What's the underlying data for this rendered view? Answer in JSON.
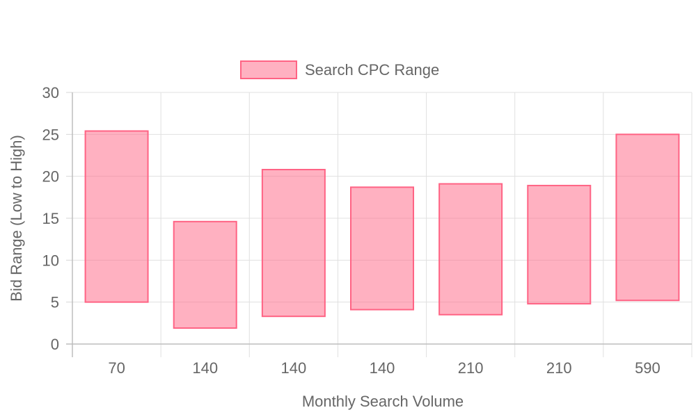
{
  "chart_data": {
    "type": "bar",
    "subtype": "floating-range",
    "title": "",
    "xlabel": "Monthly Search Volume",
    "ylabel": "Bid Range (Low to High)",
    "categories": [
      "70",
      "140",
      "140",
      "140",
      "210",
      "210",
      "590"
    ],
    "series": [
      {
        "name": "Search CPC Range",
        "color": "#ff6384",
        "fill": "rgba(255, 99, 132, 0.5)",
        "ranges": [
          [
            5.0,
            25.4
          ],
          [
            1.9,
            14.6
          ],
          [
            3.3,
            20.8
          ],
          [
            4.1,
            18.7
          ],
          [
            3.5,
            19.1
          ],
          [
            4.8,
            18.9
          ],
          [
            5.2,
            25.0
          ]
        ]
      }
    ],
    "ylim": [
      0,
      30
    ],
    "yticks": [
      0,
      5,
      10,
      15,
      20,
      25,
      30
    ],
    "grid": true,
    "legend_position": "top-center"
  }
}
